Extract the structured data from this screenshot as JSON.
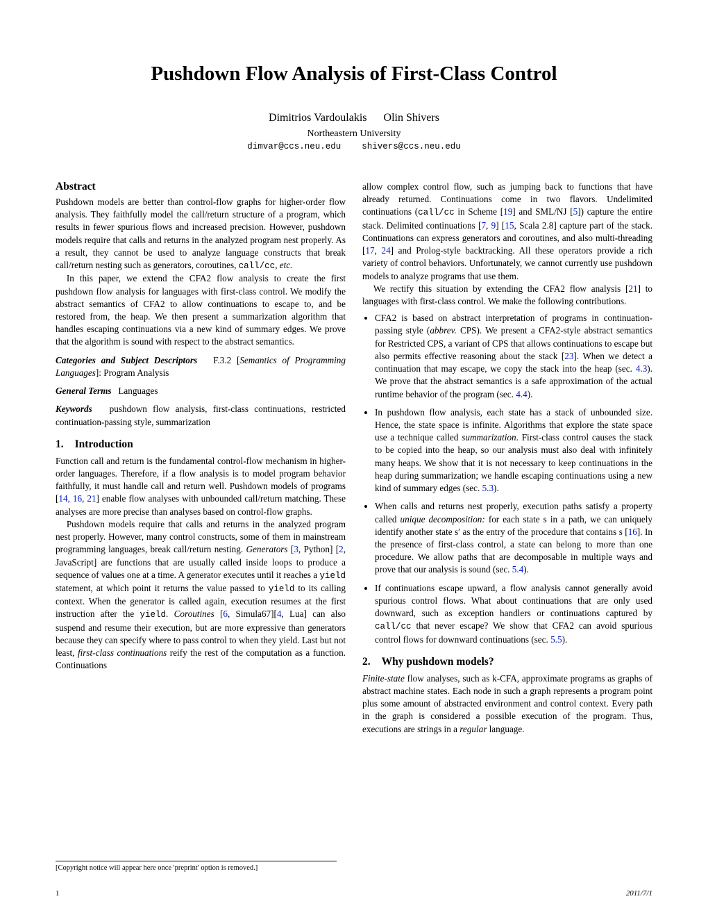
{
  "title": "Pushdown Flow Analysis of First-Class Control",
  "authors": "Dimitrios Vardoulakis      Olin Shivers",
  "affiliation": "Northeastern University",
  "emails": "dimvar@ccs.neu.edu    shivers@ccs.neu.edu",
  "abstract_label": "Abstract",
  "abstract_p1": "Pushdown models are better than control-flow graphs for higher-order flow analysis. They faithfully model the call/return structure of a program, which results in fewer spurious flows and increased precision. However, pushdown models require that calls and returns in the analyzed program nest properly. As a result, they cannot be used to analyze language constructs that break call/return nesting such as generators, coroutines, ",
  "abstract_p1_tt": "call/cc",
  "abstract_p1_end": ", etc.",
  "abstract_p2": "In this paper, we extend the CFA2 flow analysis to create the first pushdown flow analysis for languages with first-class control. We modify the abstract semantics of CFA2 to allow continuations to escape to, and be restored from, the heap. We then present a summarization algorithm that handles escaping continuations via a new kind of summary edges. We prove that the algorithm is sound with respect to the abstract semantics.",
  "categories_label": "Categories and Subject Descriptors",
  "categories_text": "F.3.2 [Semantics of Programming Languages]: Program Analysis",
  "general_terms_label": "General Terms",
  "general_terms_text": "Languages",
  "keywords_label": "Keywords",
  "keywords_text": "pushdown flow analysis, first-class continuations, restricted continuation-passing style, summarization",
  "sec1_num": "1.",
  "sec1_title": "Introduction",
  "sec1_p1a": "Function call and return is the fundamental control-flow mechanism in higher-order languages. Therefore, if a flow analysis is to model program behavior faithfully, it must handle call and return well. Pushdown models of programs [",
  "sec1_p1_refs": "14, 16, 21",
  "sec1_p1b": "] enable flow analyses with unbounded call/return matching. These analyses are more precise than analyses based on control-flow graphs.",
  "sec1_p2a": "Pushdown models require that calls and returns in the analyzed program nest properly. However, many control constructs, some of them in mainstream programming languages, break call/return nesting. ",
  "sec1_p2_gen": "Generators",
  "sec1_p2b": " [",
  "sec1_p2_r1": "3",
  "sec1_p2c": ", Python] [",
  "sec1_p2_r2": "2",
  "sec1_p2d": ", JavaScript] are functions that are usually called inside loops to produce a sequence of values one at a time. A generator executes until it reaches a ",
  "sec1_p2_tt1": "yield",
  "sec1_p2e": " statement, at which point it returns the value passed to ",
  "sec1_p2_tt2": "yield",
  "sec1_p2f": " to its calling context. When the generator is called again, execution resumes at the first instruction after the ",
  "sec1_p2_tt3": "yield",
  "sec1_p2g": ". ",
  "sec1_p2_cor": "Coroutines",
  "sec1_p2h": " [",
  "sec1_p2_r3": "6",
  "sec1_p2i": ", Simula67][",
  "sec1_p2_r4": "4",
  "sec1_p2j": ", Lua] can also suspend and resume their execution, but are more expressive than generators because they can specify where to pass control to when they yield. Last but not least, ",
  "sec1_p2_fcc": "first-class continuations",
  "sec1_p2k": " reify the rest of the computation as a function. Continuations",
  "col2_p1a": "allow complex control flow, such as jumping back to functions that have already returned. Continuations come in two flavors. Undelimited continuations (",
  "col2_p1_tt": "call/cc",
  "col2_p1b": " in Scheme [",
  "col2_p1_r1": "19",
  "col2_p1c": "] and SML/NJ [",
  "col2_p1_r2": "5",
  "col2_p1d": "]) capture the entire stack. Delimited continuations [",
  "col2_p1_r3": "7",
  "col2_p1e": ", ",
  "col2_p1_r4": "9",
  "col2_p1f": "] [",
  "col2_p1_r5": "15",
  "col2_p1g": ", Scala 2.8] capture part of the stack. Continuations can express generators and coroutines, and also multi-threading [",
  "col2_p1_r6": "17",
  "col2_p1h": ", ",
  "col2_p1_r7": "24",
  "col2_p1i": "] and Prolog-style backtracking. All these operators provide a rich variety of control behaviors. Unfortunately, we cannot currently use pushdown models to analyze programs that use them.",
  "col2_p2a": "We rectify this situation by extending the CFA2 flow analysis [",
  "col2_p2_r": "21",
  "col2_p2b": "] to languages with first-class control. We make the following contributions.",
  "bul1a": "CFA2 is based on abstract interpretation of programs in continuation-passing style (",
  "bul1_abbrev": "abbrev.",
  "bul1b": " CPS). We present a CFA2-style abstract semantics for Restricted CPS, a variant of CPS that allows continuations to escape but also permits effective reasoning about the stack [",
  "bul1_r": "23",
  "bul1c": "]. When we detect a continuation that may escape, we copy the stack into the heap (sec. ",
  "bul1_s1": "4.3",
  "bul1d": "). We prove that the abstract semantics is a safe approximation of the actual runtime behavior of the program (sec. ",
  "bul1_s2": "4.4",
  "bul1e": ").",
  "bul2a": "In pushdown flow analysis, each state has a stack of unbounded size. Hence, the state space is infinite. Algorithms that explore the state space use a technique called ",
  "bul2_summ": "summarization",
  "bul2b": ". First-class control causes the stack to be copied into the heap, so our analysis must also deal with infinitely many heaps. We show that it is not necessary to keep continuations in the heap during summarization; we handle escaping continuations using a new kind of summary edges (sec. ",
  "bul2_s": "5.3",
  "bul2c": ").",
  "bul3a": "When calls and returns nest properly, execution paths satisfy a property called ",
  "bul3_ud": "unique decomposition:",
  "bul3b": " for each state s in a path, we can uniquely identify another state s′ as the entry of the procedure that contains s [",
  "bul3_r": "16",
  "bul3c": "]. In the presence of first-class control, a state can belong to more than one procedure. We allow paths that are decomposable in multiple ways and prove that our analysis is sound (sec. ",
  "bul3_s": "5.4",
  "bul3d": ").",
  "bul4a": "If continuations escape upward, a flow analysis cannot generally avoid spurious control flows. What about continuations that are only used downward, such as exception handlers or continuations captured by ",
  "bul4_tt": "call/cc",
  "bul4b": " that never escape? We show that CFA2 can avoid spurious control flows for downward continuations (sec. ",
  "bul4_s": "5.5",
  "bul4c": ").",
  "sec2_num": "2.",
  "sec2_title": "Why pushdown models?",
  "sec2_p1a": "Finite-state",
  "sec2_p1b": " flow analyses, such as k-CFA, approximate programs as graphs of abstract machine states. Each node in such a graph represents a program point plus some amount of abstracted environment and control context. Every path in the graph is considered a possible execution of the program. Thus, executions are strings in a ",
  "sec2_p1c": "regular",
  "sec2_p1d": " language.",
  "copyright": "[Copyright notice will appear here once 'preprint' option is removed.]",
  "page_num": "1",
  "date": "2011/7/1"
}
